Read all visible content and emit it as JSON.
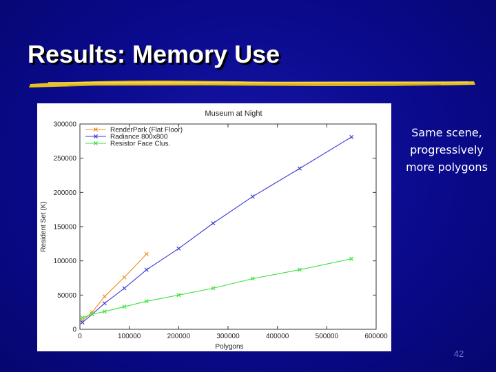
{
  "slide": {
    "title": "Results: Memory Use",
    "note": "Same scene, progressively more polygons",
    "page_number": "42",
    "colors": {
      "background": "#0a0a8c",
      "title": "#ffffff",
      "underline": "#e8c020"
    }
  },
  "chart_data": {
    "type": "line",
    "title": "Museum at Night",
    "xlabel": "Polygons",
    "ylabel": "Resident Set (K)",
    "xlim": [
      0,
      600000
    ],
    "ylim": [
      0,
      300000
    ],
    "x_ticks": [
      0,
      100000,
      200000,
      300000,
      400000,
      500000,
      600000
    ],
    "x_tick_labels": [
      "0",
      "100000",
      "200000",
      "300000",
      "400000",
      "500000",
      "600000"
    ],
    "y_ticks": [
      0,
      50000,
      100000,
      150000,
      200000,
      250000,
      300000
    ],
    "y_tick_labels": [
      "0",
      "50000",
      "100000",
      "150000",
      "200000",
      "250000",
      "300000"
    ],
    "grid": false,
    "legend_position": "top-left",
    "series": [
      {
        "name": "RenderPark (Flat Floor)",
        "color": "#f08c1e",
        "x": [
          5000,
          25000,
          50000,
          90000,
          135000
        ],
        "y": [
          13000,
          25000,
          48000,
          76000,
          110000
        ]
      },
      {
        "name": "Radiance 800x800",
        "color": "#3a3ad2",
        "x": [
          5000,
          25000,
          50000,
          90000,
          135000,
          200000,
          270000,
          350000,
          445000,
          550000
        ],
        "y": [
          10000,
          22000,
          38000,
          60000,
          87000,
          118000,
          155000,
          194000,
          235000,
          281000
        ]
      },
      {
        "name": "Resistor Face Clus.",
        "color": "#3ee03e",
        "x": [
          5000,
          25000,
          50000,
          90000,
          135000,
          200000,
          270000,
          350000,
          445000,
          550000
        ],
        "y": [
          17000,
          22000,
          26000,
          33000,
          41000,
          50000,
          60000,
          74000,
          87000,
          103000
        ]
      }
    ]
  }
}
